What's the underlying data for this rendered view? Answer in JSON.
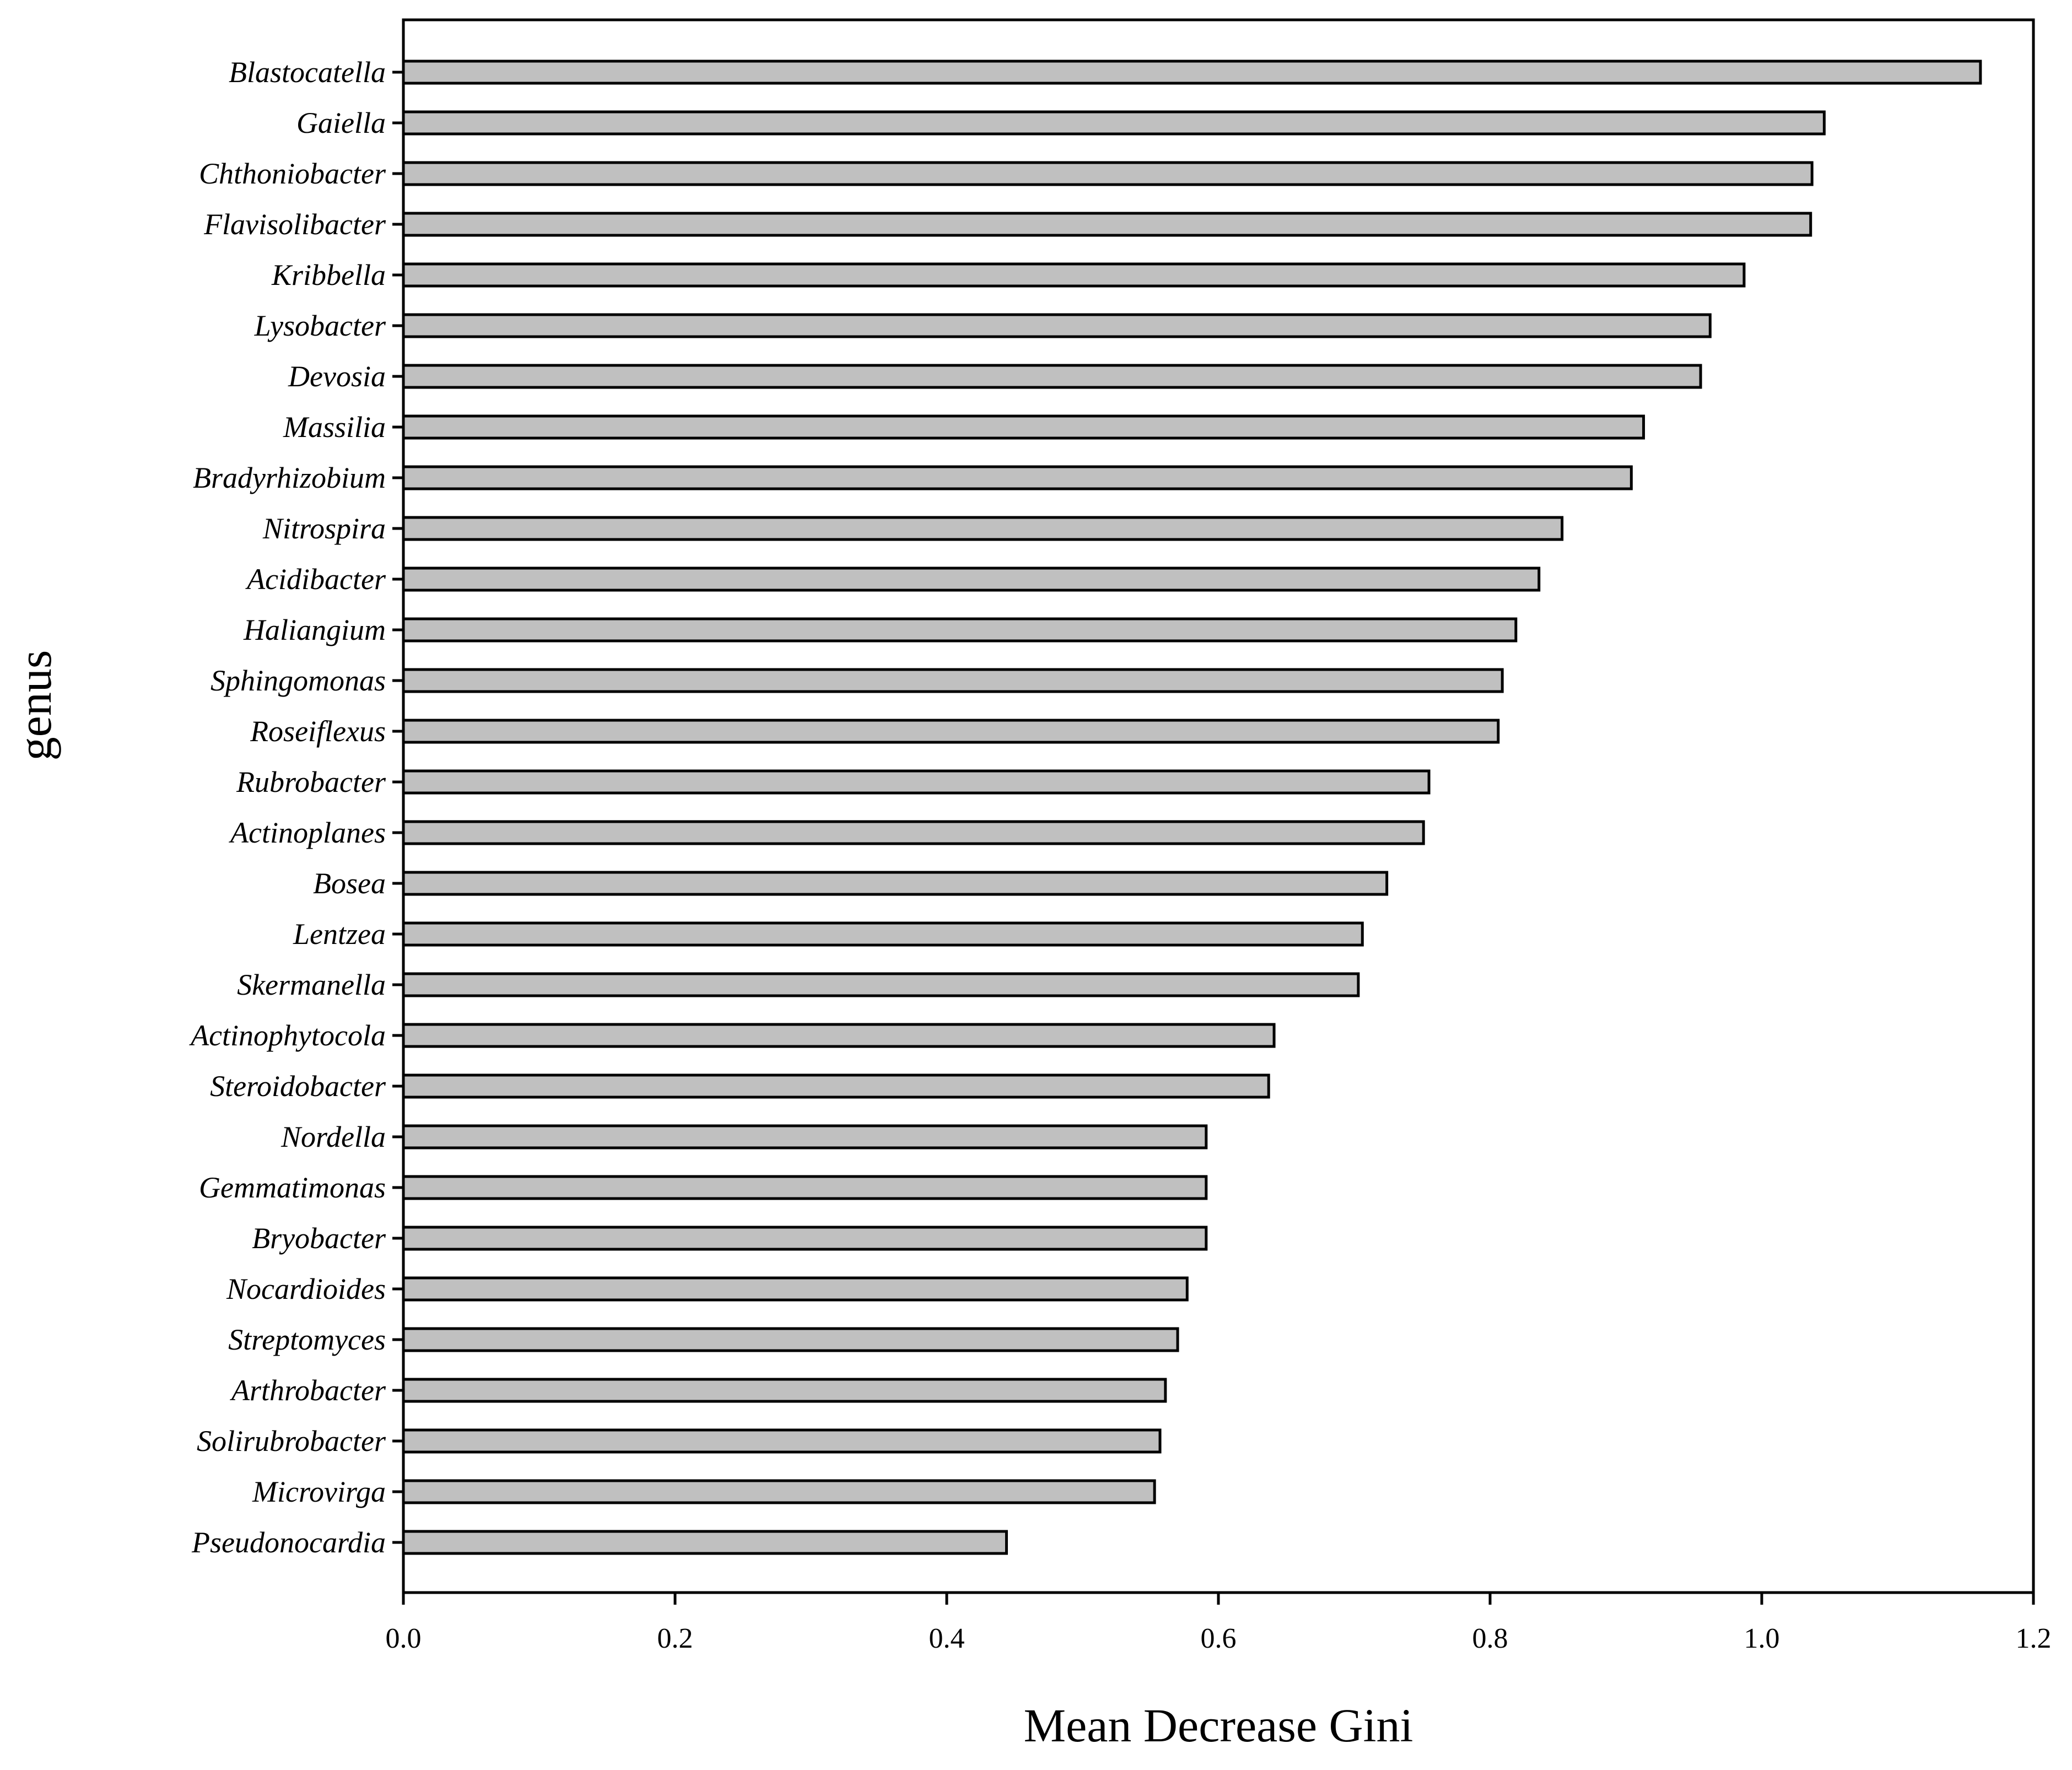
{
  "chart_data": {
    "type": "bar",
    "orientation": "horizontal",
    "xlabel": "Mean Decrease Gini",
    "ylabel": "genus",
    "xlim": [
      0,
      1.2
    ],
    "x_ticks": [
      "0.0",
      "0.2",
      "0.4",
      "0.6",
      "0.8",
      "1.0",
      "1.2"
    ],
    "grid": false,
    "bar_color": "#c0c0c0",
    "categories": [
      "Blastocatella",
      "Gaiella",
      "Chthoniobacter",
      "Flavisolibacter",
      "Kribbella",
      "Lysobacter",
      "Devosia",
      "Massilia",
      "Bradyrhizobium",
      "Nitrospira",
      "Acidibacter",
      "Haliangium",
      "Sphingomonas",
      "Roseiflexus",
      "Rubrobacter",
      "Actinoplanes",
      "Bosea",
      "Lentzea",
      "Skermanella",
      "Actinophytocola",
      "Steroidobacter",
      "Nordella",
      "Gemmatimonas",
      "Bryobacter",
      "Nocardioides",
      "Streptomyces",
      "Arthrobacter",
      "Solirubrobacter",
      "Microvirga",
      "Pseudonocardia"
    ],
    "values": [
      1.161,
      1.046,
      1.037,
      1.036,
      0.987,
      0.962,
      0.955,
      0.913,
      0.904,
      0.853,
      0.836,
      0.819,
      0.809,
      0.806,
      0.755,
      0.751,
      0.724,
      0.706,
      0.703,
      0.641,
      0.637,
      0.591,
      0.591,
      0.591,
      0.577,
      0.57,
      0.561,
      0.557,
      0.553,
      0.444
    ]
  }
}
